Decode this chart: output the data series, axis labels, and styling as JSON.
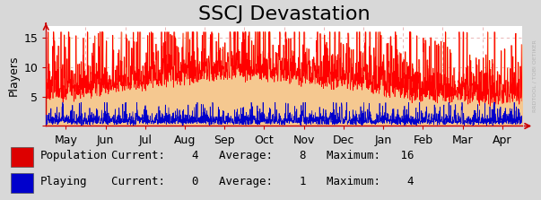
{
  "title": "SSCJ Devastation",
  "ylabel": "Players",
  "background_color": "#d8d8d8",
  "plot_bg_color": "#ffffff",
  "fill_color": "#f5c890",
  "grid_color": "#e8aaaa",
  "red_line_color": "#ff0000",
  "blue_line_color": "#0000cc",
  "x_tick_labels": [
    "May",
    "Jun",
    "Jul",
    "Aug",
    "Sep",
    "Oct",
    "Nov",
    "Dec",
    "Jan",
    "Feb",
    "Mar",
    "Apr"
  ],
  "ylim": [
    0,
    17
  ],
  "yticks": [
    0,
    5,
    10,
    15
  ],
  "legend_entries": [
    {
      "label": "Population",
      "color": "#dd0000",
      "current": 4,
      "average": 8,
      "maximum": 16
    },
    {
      "label": "Playing",
      "color": "#0000cc",
      "current": 0,
      "average": 1,
      "maximum": 4
    }
  ],
  "watermark": "RRDTOOL / TOBI OETIKER",
  "title_fontsize": 16,
  "axis_fontsize": 9,
  "legend_fontsize": 9,
  "n_points": 8760,
  "seed": 1234
}
